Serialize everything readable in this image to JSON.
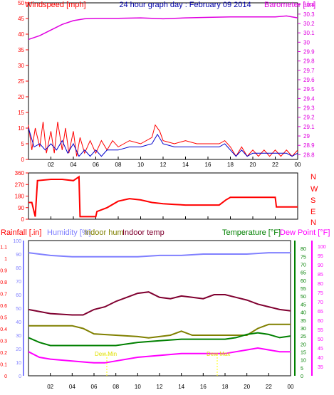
{
  "chart_data": [
    {
      "type": "line",
      "title": "24 hour graph day : February 09 2014",
      "x_ticks": [
        "02",
        "04",
        "06",
        "08",
        "10",
        "12",
        "14",
        "16",
        "18",
        "20",
        "22",
        "00"
      ],
      "left_axis": {
        "label": "Windspeed [mph]",
        "range": [
          0,
          50
        ],
        "ticks": [
          "0",
          "5",
          "10",
          "15",
          "20",
          "25",
          "30",
          "35",
          "40",
          "45",
          "50"
        ]
      },
      "right_axis": {
        "label": "Barometer [.in]",
        "range": [
          28.75,
          30.42
        ],
        "ticks": [
          "28.8",
          "28.9",
          "29",
          "29.1",
          "29.2",
          "29.3",
          "29.4",
          "29.5",
          "29.6",
          "29.7",
          "29.8",
          "29.9",
          "30",
          "30.1",
          "30.2",
          "30.3",
          "30.4"
        ]
      },
      "series": [
        {
          "name": "Barometer",
          "axis": "right",
          "color": "#e000e0",
          "points": [
            [
              0,
              30.03
            ],
            [
              1,
              30.07
            ],
            [
              2,
              30.13
            ],
            [
              3,
              30.19
            ],
            [
              4,
              30.23
            ],
            [
              5,
              30.25
            ],
            [
              6,
              30.255
            ],
            [
              8,
              30.255
            ],
            [
              10,
              30.26
            ],
            [
              12,
              30.25
            ],
            [
              14,
              30.26
            ],
            [
              16,
              30.265
            ],
            [
              18,
              30.27
            ],
            [
              20,
              30.27
            ],
            [
              22,
              30.27
            ],
            [
              23,
              30.28
            ],
            [
              24,
              30.26
            ]
          ]
        },
        {
          "name": "Gust",
          "axis": "left",
          "color": "#ff0000",
          "points": [
            [
              0,
              11
            ],
            [
              0.3,
              3
            ],
            [
              0.6,
              10
            ],
            [
              1,
              4
            ],
            [
              1.3,
              12
            ],
            [
              1.6,
              2
            ],
            [
              2,
              9
            ],
            [
              2.3,
              2
            ],
            [
              2.6,
              12
            ],
            [
              3,
              3
            ],
            [
              3.3,
              10
            ],
            [
              3.6,
              2
            ],
            [
              4,
              9
            ],
            [
              4.3,
              1
            ],
            [
              4.6,
              7
            ],
            [
              5,
              2
            ],
            [
              5.5,
              6
            ],
            [
              6,
              2
            ],
            [
              6.5,
              6
            ],
            [
              7,
              3
            ],
            [
              7.5,
              6
            ],
            [
              8,
              4
            ],
            [
              9,
              6
            ],
            [
              10,
              5
            ],
            [
              11,
              7
            ],
            [
              11.3,
              11
            ],
            [
              11.7,
              9
            ],
            [
              12,
              6
            ],
            [
              13,
              5
            ],
            [
              14,
              6
            ],
            [
              15,
              5
            ],
            [
              16,
              5
            ],
            [
              17,
              5
            ],
            [
              17.5,
              6
            ],
            [
              18,
              4
            ],
            [
              18.5,
              1
            ],
            [
              19,
              4
            ],
            [
              19.5,
              1
            ],
            [
              20,
              3
            ],
            [
              20.5,
              1
            ],
            [
              21,
              3
            ],
            [
              21.5,
              1
            ],
            [
              22,
              3
            ],
            [
              22.5,
              1
            ],
            [
              23,
              3
            ],
            [
              23.5,
              1
            ],
            [
              24,
              3
            ]
          ]
        },
        {
          "name": "Average",
          "axis": "left",
          "color": "#0000cc",
          "points": [
            [
              0,
              10
            ],
            [
              0.5,
              4
            ],
            [
              1,
              5
            ],
            [
              1.5,
              3
            ],
            [
              2,
              5
            ],
            [
              2.5,
              3
            ],
            [
              3,
              6
            ],
            [
              3.5,
              2
            ],
            [
              4,
              5
            ],
            [
              4.5,
              1
            ],
            [
              5,
              3
            ],
            [
              5.5,
              1
            ],
            [
              6,
              3
            ],
            [
              6.5,
              1
            ],
            [
              7,
              3
            ],
            [
              8,
              3
            ],
            [
              9,
              4
            ],
            [
              10,
              4
            ],
            [
              11,
              5
            ],
            [
              11.5,
              8
            ],
            [
              12,
              5
            ],
            [
              13,
              4
            ],
            [
              14,
              4
            ],
            [
              15,
              4
            ],
            [
              16,
              4
            ],
            [
              17,
              4
            ],
            [
              17.5,
              5
            ],
            [
              18,
              3
            ],
            [
              18.5,
              1
            ],
            [
              19,
              3
            ],
            [
              19.5,
              1
            ],
            [
              20,
              2
            ],
            [
              21,
              2
            ],
            [
              22,
              2
            ],
            [
              23,
              2
            ],
            [
              23.5,
              1
            ],
            [
              24,
              2
            ]
          ]
        }
      ]
    },
    {
      "type": "line",
      "x_ticks": [
        "02",
        "04",
        "06",
        "08",
        "10",
        "12",
        "14",
        "16",
        "18",
        "20",
        "22",
        "00"
      ],
      "left_axis": {
        "range": [
          0,
          360
        ],
        "ticks": [
          "0",
          "90",
          "180",
          "270",
          "360"
        ]
      },
      "right_axis": {
        "ticks": [
          "N",
          "W",
          "S",
          "E",
          "N"
        ]
      },
      "series": [
        {
          "name": "Direction",
          "color": "#ff0000",
          "points": [
            [
              0,
              130
            ],
            [
              0.3,
              130
            ],
            [
              0.6,
              20
            ],
            [
              0.8,
              300
            ],
            [
              2,
              310
            ],
            [
              3,
              310
            ],
            [
              4,
              300
            ],
            [
              4.5,
              330
            ],
            [
              4.6,
              20
            ],
            [
              6,
              20
            ],
            [
              6.1,
              60
            ],
            [
              7,
              90
            ],
            [
              8,
              140
            ],
            [
              9,
              160
            ],
            [
              10,
              150
            ],
            [
              11,
              130
            ],
            [
              12,
              120
            ],
            [
              13,
              115
            ],
            [
              14,
              110
            ],
            [
              15,
              110
            ],
            [
              16,
              110
            ],
            [
              17,
              110
            ],
            [
              17.6,
              150
            ],
            [
              18,
              170
            ],
            [
              21,
              170
            ],
            [
              22,
              170
            ],
            [
              22.1,
              95
            ],
            [
              24,
              95
            ]
          ]
        }
      ]
    },
    {
      "type": "line",
      "x_ticks": [
        "02",
        "04",
        "06",
        "08",
        "10",
        "12",
        "14",
        "16",
        "18",
        "20",
        "22",
        "00"
      ],
      "legend": [
        "Rainfall [.in]",
        "Humidity [%]",
        "Indoor hum",
        "Indoor temp",
        "Temperature [°F]",
        "Dew Point [°F]"
      ],
      "axes": [
        {
          "label": "Rainfall [.in]",
          "range": [
            0,
            1.15
          ],
          "ticks": [
            "0",
            "0.1",
            "0.2",
            "0.3",
            "0.4",
            "0.5",
            "0.6",
            "0.7",
            "0.8",
            "0.9",
            "1",
            "1.1"
          ]
        },
        {
          "label": "Humidity [%]",
          "range": [
            0,
            100
          ],
          "ticks": [
            "0",
            "10",
            "20",
            "30",
            "40",
            "50",
            "60",
            "70",
            "80",
            "90",
            "100"
          ]
        },
        {
          "label": "Temperature [°F]",
          "range": [
            0,
            85
          ],
          "ticks": [
            "0",
            "5",
            "10",
            "15",
            "20",
            "25",
            "30",
            "35",
            "40",
            "45",
            "50",
            "55",
            "60",
            "65",
            "70",
            "75",
            "80"
          ]
        },
        {
          "label": "Dew Point [°F]",
          "range": [
            30,
            103
          ],
          "ticks": [
            "35",
            "40",
            "45",
            "50",
            "55",
            "60",
            "65",
            "70",
            "75",
            "80",
            "85",
            "90",
            "95",
            "100"
          ]
        }
      ],
      "annotations": [
        "Dew Min",
        "Dew Max"
      ],
      "series": [
        {
          "name": "Humidity [%]",
          "axis": "humidity",
          "color": "#8080ff",
          "points": [
            [
              0,
              91
            ],
            [
              2,
              89
            ],
            [
              4,
              88
            ],
            [
              6,
              88
            ],
            [
              8,
              88
            ],
            [
              10,
              88
            ],
            [
              12,
              89
            ],
            [
              14,
              89
            ],
            [
              16,
              90
            ],
            [
              18,
              90
            ],
            [
              20,
              90
            ],
            [
              22,
              91
            ],
            [
              24,
              91
            ]
          ]
        },
        {
          "name": "Indoor temp",
          "axis": "humidity",
          "color": "#800030",
          "points": [
            [
              0,
              49
            ],
            [
              2,
              46
            ],
            [
              4,
              45
            ],
            [
              5,
              45
            ],
            [
              6,
              49
            ],
            [
              7,
              51
            ],
            [
              8,
              55
            ],
            [
              9,
              58
            ],
            [
              10,
              61
            ],
            [
              11,
              62
            ],
            [
              12,
              58
            ],
            [
              13,
              57
            ],
            [
              14,
              59
            ],
            [
              15,
              58
            ],
            [
              16,
              57
            ],
            [
              17,
              60
            ],
            [
              18,
              60
            ],
            [
              19,
              58
            ],
            [
              20,
              56
            ],
            [
              21,
              53
            ],
            [
              22,
              51
            ],
            [
              23,
              49
            ],
            [
              24,
              48
            ]
          ]
        },
        {
          "name": "Indoor hum",
          "axis": "humidity",
          "color": "#808000",
          "points": [
            [
              0,
              37
            ],
            [
              2,
              37
            ],
            [
              4,
              37
            ],
            [
              5,
              35
            ],
            [
              6,
              31
            ],
            [
              8,
              30
            ],
            [
              10,
              29
            ],
            [
              11,
              28
            ],
            [
              12,
              29
            ],
            [
              13,
              30
            ],
            [
              14,
              33
            ],
            [
              15,
              30
            ],
            [
              16,
              30
            ],
            [
              17,
              30
            ],
            [
              18,
              30
            ],
            [
              19,
              30
            ],
            [
              20,
              30
            ],
            [
              21,
              35
            ],
            [
              22,
              38
            ],
            [
              23,
              38
            ],
            [
              24,
              38
            ]
          ]
        },
        {
          "name": "Temperature [°F]",
          "axis": "temperature",
          "color": "#008000",
          "points": [
            [
              0,
              24
            ],
            [
              1,
              21
            ],
            [
              2,
              19
            ],
            [
              4,
              19
            ],
            [
              6,
              19
            ],
            [
              8,
              19
            ],
            [
              10,
              21
            ],
            [
              12,
              22
            ],
            [
              14,
              23
            ],
            [
              16,
              23
            ],
            [
              18,
              23
            ],
            [
              19,
              24
            ],
            [
              20,
              26
            ],
            [
              21,
              27
            ],
            [
              22,
              26
            ],
            [
              23,
              24
            ],
            [
              24,
              25
            ]
          ]
        },
        {
          "name": "Dew Point [°F]",
          "axis": "dewpoint",
          "color": "#ff00ff",
          "points": [
            [
              0,
              43
            ],
            [
              1,
              40
            ],
            [
              2,
              39
            ],
            [
              4,
              38
            ],
            [
              6,
              37
            ],
            [
              7,
              37
            ],
            [
              8,
              38
            ],
            [
              10,
              40
            ],
            [
              12,
              41
            ],
            [
              14,
              42
            ],
            [
              16,
              42
            ],
            [
              18,
              42
            ],
            [
              19,
              43
            ],
            [
              20,
              44
            ],
            [
              21,
              45
            ],
            [
              22,
              44
            ],
            [
              23,
              43
            ],
            [
              24,
              43
            ]
          ]
        }
      ]
    }
  ]
}
